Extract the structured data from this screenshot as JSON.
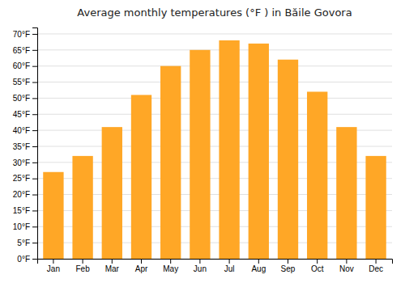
{
  "chart_data": {
    "type": "bar",
    "title": "Average monthly temperatures (°F ) in Băile Govora",
    "categories": [
      "Jan",
      "Feb",
      "Mar",
      "Apr",
      "May",
      "Jun",
      "Jul",
      "Aug",
      "Sep",
      "Oct",
      "Nov",
      "Dec"
    ],
    "values": [
      27,
      32,
      41,
      51,
      60,
      65,
      68,
      67,
      62,
      52,
      41,
      32
    ],
    "color": "#FFA726",
    "ylim": [
      0,
      72
    ],
    "yticks": [
      {
        "value": 0,
        "label": "0°F"
      },
      {
        "value": 5,
        "label": "5°F"
      },
      {
        "value": 10,
        "label": "10°F"
      },
      {
        "value": 15,
        "label": "15°F"
      },
      {
        "value": 20,
        "label": "20°F"
      },
      {
        "value": 25,
        "label": "25°F"
      },
      {
        "value": 30,
        "label": "30°F"
      },
      {
        "value": 35,
        "label": "35°F"
      },
      {
        "value": 40,
        "label": "40°F"
      },
      {
        "value": 45,
        "label": "45°F"
      },
      {
        "value": 50,
        "label": "50°F"
      },
      {
        "value": 55,
        "label": "55°F"
      },
      {
        "value": 60,
        "label": "60°F"
      },
      {
        "value": 65,
        "label": "65°F"
      },
      {
        "value": 70,
        "label": "70°F"
      }
    ],
    "grid": true
  }
}
